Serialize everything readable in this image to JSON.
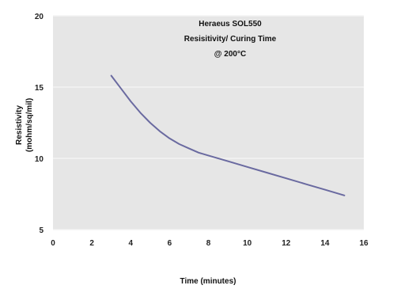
{
  "chart_data": {
    "type": "line",
    "title_lines": [
      "Heraeus SOL550",
      "Resisitivity/ Curing Time",
      "@ 200°C"
    ],
    "xlabel": "Time  (minutes)",
    "ylabel_lines": [
      "Resistivity",
      "(mohm/sq/mil)"
    ],
    "xlim": [
      0,
      16
    ],
    "ylim": [
      5,
      20
    ],
    "x_ticks": [
      0,
      2,
      4,
      6,
      8,
      10,
      12,
      14,
      16
    ],
    "y_ticks": [
      5,
      10,
      15,
      20
    ],
    "grid": true,
    "legend": "none",
    "colors": {
      "plot_background": "#e6e6e6",
      "gridline": "#f4f4f4",
      "line": "#6a6aa0"
    },
    "series": [
      {
        "x": [
          3,
          3.5,
          4,
          4.5,
          5,
          5.5,
          6,
          6.5,
          7,
          7.5,
          8,
          9,
          10,
          11,
          12,
          13,
          14,
          15
        ],
        "y": [
          15.8,
          14.9,
          14.0,
          13.2,
          12.5,
          11.9,
          11.4,
          11.0,
          10.7,
          10.4,
          10.2,
          9.8,
          9.4,
          9.0,
          8.6,
          8.2,
          7.8,
          7.4
        ]
      }
    ]
  }
}
